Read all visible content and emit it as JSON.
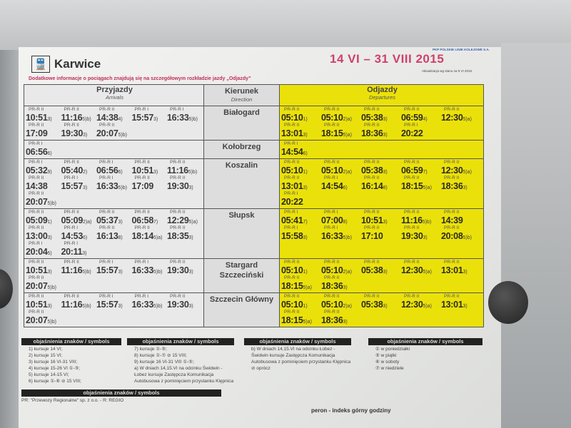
{
  "header": {
    "logo": "train-icon",
    "station": "Karwice",
    "info": "Dodatkowe informacje o pociągach znajdują się na szczegółowym rozkładzie jazdy „Odjazdy”",
    "operator": "PKP POLSKIE LINIE KOLEJOWE S.A.",
    "period": "14 VI – 31 VIII 2015",
    "update": "Aktualizacja wg stanu na 9 VI 2015"
  },
  "columns": {
    "arrivals": "Przyjazdy",
    "arrivals_en": "Arrivals",
    "direction": "Kierunek",
    "direction_en": "Direction",
    "departures": "Odjazdy",
    "departures_en": "Departures"
  },
  "carrier": "PR-R",
  "rows": [
    {
      "direction": "Białogard",
      "arrivals": [
        [
          "10:51",
          "II",
          "3)"
        ],
        [
          "11:16",
          "II",
          "5)b)"
        ],
        [
          "14:38",
          "II",
          "4)"
        ],
        [
          "15:57",
          "I",
          "3)"
        ],
        [
          "16:33",
          "I",
          "5)b)"
        ],
        [
          "17:09",
          "II",
          ""
        ],
        [
          "19:30",
          "II",
          "3)"
        ],
        [
          "20:07",
          "II",
          "5)b)"
        ]
      ],
      "departures": [
        [
          "05:10",
          "II",
          "1)"
        ],
        [
          "05:10",
          "II",
          "2)a)"
        ],
        [
          "05:38",
          "II",
          "3)"
        ],
        [
          "06:59",
          "II",
          "4)"
        ],
        [
          "12:30",
          "II",
          "5)a)"
        ],
        [
          "13:01",
          "II",
          "3)"
        ],
        [
          "18:15",
          "II",
          "5)a)"
        ],
        [
          "18:36",
          "II",
          "3)"
        ],
        [
          "20:22",
          "I",
          ""
        ]
      ]
    },
    {
      "direction": "Kołobrzeg",
      "arrivals": [
        [
          "06:56",
          "I",
          "6)"
        ]
      ],
      "departures": [
        [
          "14:54",
          "I",
          "6)"
        ]
      ]
    },
    {
      "direction": "Koszalin",
      "arrivals": [
        [
          "05:32",
          "I",
          "9)"
        ],
        [
          "05:40",
          "II",
          "2)"
        ],
        [
          "06:56",
          "I",
          "6)"
        ],
        [
          "10:51",
          "II",
          "3)"
        ],
        [
          "11:16",
          "II",
          "5)b)"
        ],
        [
          "14:38",
          "II",
          ""
        ],
        [
          "15:57",
          "I",
          "3)"
        ],
        [
          "16:33",
          "I",
          "5)b)"
        ],
        [
          "17:09",
          "II",
          ""
        ],
        [
          "19:30",
          "II",
          "3)"
        ],
        [
          "20:07",
          "II",
          "5)b)"
        ]
      ],
      "departures": [
        [
          "05:10",
          "II",
          "1)"
        ],
        [
          "05:10",
          "II",
          "2)a)"
        ],
        [
          "05:38",
          "II",
          "3)"
        ],
        [
          "06:59",
          "II",
          "7)"
        ],
        [
          "12:30",
          "II",
          "5)a)"
        ],
        [
          "13:01",
          "II",
          "3)"
        ],
        [
          "14:54",
          "I",
          "6)"
        ],
        [
          "16:14",
          "II",
          "8)"
        ],
        [
          "18:15",
          "II",
          "5)a)"
        ],
        [
          "18:36",
          "II",
          "3)"
        ],
        [
          "20:22",
          "I",
          ""
        ]
      ]
    },
    {
      "direction": "Słupsk",
      "arrivals": [
        [
          "05:09",
          "II",
          "1)"
        ],
        [
          "05:09",
          "II",
          "2)a)"
        ],
        [
          "05:37",
          "II",
          "3)"
        ],
        [
          "06:58",
          "II",
          "7)"
        ],
        [
          "12:29",
          "II",
          "5)a)"
        ],
        [
          "13:00",
          "II",
          "3)"
        ],
        [
          "14:53",
          "I",
          "6)"
        ],
        [
          "16:13",
          "II",
          "8)"
        ],
        [
          "18:14",
          "II",
          "5)a)"
        ],
        [
          "18:35",
          "II",
          "3)"
        ],
        [
          "20:04",
          "I",
          "5)"
        ],
        [
          "20:11",
          "I",
          "3)"
        ]
      ],
      "departures": [
        [
          "05:41",
          "I",
          "7)"
        ],
        [
          "07:00",
          "I",
          "8)"
        ],
        [
          "10:51",
          "II",
          "3)"
        ],
        [
          "11:16",
          "II",
          "5)b)"
        ],
        [
          "14:39",
          "II",
          ""
        ],
        [
          "15:58",
          "I",
          "3)"
        ],
        [
          "16:33",
          "I",
          "5)b)"
        ],
        [
          "17:10",
          "II",
          ""
        ],
        [
          "19:30",
          "II",
          "3)"
        ],
        [
          "20:08",
          "II",
          "5)b)"
        ]
      ]
    },
    {
      "direction": "Stargard Szczeciński",
      "arrivals": [
        [
          "10:51",
          "II",
          "3)"
        ],
        [
          "11:16",
          "II",
          "5)b)"
        ],
        [
          "15:57",
          "I",
          "3)"
        ],
        [
          "16:33",
          "I",
          "5)b)"
        ],
        [
          "19:30",
          "II",
          "3)"
        ],
        [
          "20:07",
          "II",
          "5)b)"
        ]
      ],
      "departures": [
        [
          "05:10",
          "II",
          "1)"
        ],
        [
          "05:10",
          "II",
          "2)a)"
        ],
        [
          "05:38",
          "II",
          "3)"
        ],
        [
          "12:30",
          "II",
          "5)a)"
        ],
        [
          "13:01",
          "II",
          "3)"
        ],
        [
          "18:15",
          "II",
          "5)a)"
        ],
        [
          "18:36",
          "II",
          "3)"
        ]
      ]
    },
    {
      "direction": "Szczecin Główny",
      "arrivals": [
        [
          "10:51",
          "II",
          "3)"
        ],
        [
          "11:16",
          "II",
          "5)b)"
        ],
        [
          "15:57",
          "I",
          "3)"
        ],
        [
          "16:33",
          "I",
          "5)b)"
        ],
        [
          "19:30",
          "II",
          "3)"
        ],
        [
          "20:07",
          "II",
          "5)b)"
        ]
      ],
      "departures": [
        [
          "05:10",
          "II",
          "1)"
        ],
        [
          "05:10",
          "II",
          "2)a)"
        ],
        [
          "05:38",
          "II",
          "3)"
        ],
        [
          "12:30",
          "II",
          "5)a)"
        ],
        [
          "13:01",
          "II",
          "3)"
        ],
        [
          "18:15",
          "II",
          "5)a)"
        ],
        [
          "18:36",
          "II",
          "3)"
        ]
      ]
    }
  ],
  "legend_title": "objaśnienia znaków / symbols",
  "legends": [
    {
      "items": [
        "1) kursuje 14 VI;",
        "2) kursuje 15 VI;",
        "3) kursuje 16 VI-31 VIII;",
        "4) kursuje 15-26 VI ①-⑤;",
        "5) kursuje 14-15 VI;",
        "6) kursuje ①-⑥ ⊘ 15 VIII;"
      ]
    },
    {
      "items": [
        "7) kursuje ①-⑤;",
        "8) kursuje ①-⑦ ⊘ 15 VIII;",
        "9) kursuje 16 VI-31 VIII ①-⑤;",
        "a) W dniach 14,15.VI na odcinku Świdwin - Łobez kursuje Zastępcza Komunikacja Autobusowa z pominięciem przystanku Klępnica"
      ]
    },
    {
      "items": [
        "b) W dniach 14,15.VI na odcinku Łobez - Świdwin kursuje Zastępcza Komunikacja Autobusowa z pominięciem przystanku Klępnica",
        "⊘ oprócz"
      ]
    },
    {
      "items": [
        "① w poniedziałki",
        "⑤ w piątki",
        "⑥ w soboty",
        "⑦ w niedziele"
      ]
    },
    {
      "items": [
        "PR: \"Przewozy Regionalne\" sp. z o.o. - R: REGIO"
      ]
    }
  ],
  "peron": "peron - indeks górny godziny",
  "colors": {
    "departures_bg": "#ebe10a",
    "title_red": "#d0406a"
  }
}
